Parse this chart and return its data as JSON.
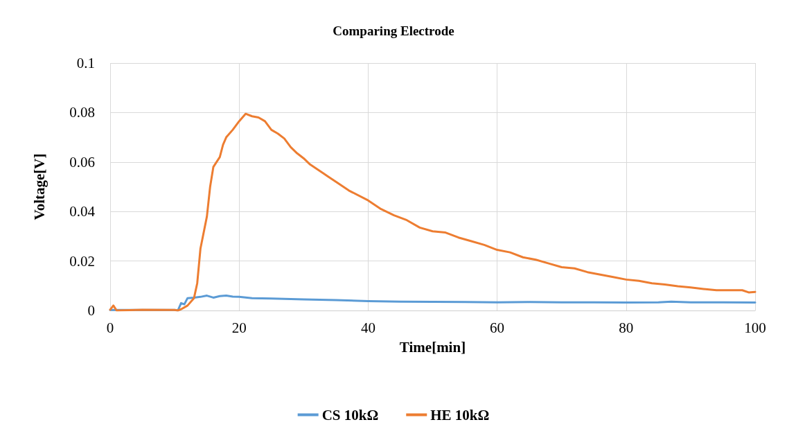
{
  "chart_data": {
    "type": "line",
    "title": "Comparing Electrode",
    "xlabel": "Time[min]",
    "ylabel": "Voltage[V]",
    "xlim": [
      0,
      100
    ],
    "xticks": [
      0,
      20,
      40,
      60,
      80,
      100
    ],
    "ylim": [
      0,
      0.1
    ],
    "yticks": [
      0,
      0.02,
      0.04,
      0.06,
      0.08,
      0.1
    ],
    "grid": true,
    "legend": "bottom",
    "marker": "none",
    "line_style": "solid",
    "series": [
      {
        "name": "CS 10kΩ",
        "color": "#5b9bd5",
        "x": [
          0,
          10,
          10.5,
          11,
          11.5,
          12,
          13,
          14,
          15,
          16,
          17,
          18,
          19,
          20,
          22,
          25,
          30,
          35,
          40,
          45,
          50,
          55,
          60,
          65,
          70,
          75,
          80,
          85,
          87,
          90,
          95,
          100
        ],
        "values": [
          0.0002,
          0.0002,
          0,
          0.003,
          0.0025,
          0.005,
          0.0052,
          0.0055,
          0.006,
          0.0052,
          0.0058,
          0.006,
          0.0056,
          0.0055,
          0.005,
          0.0048,
          0.0045,
          0.0042,
          0.0038,
          0.0036,
          0.0035,
          0.0034,
          0.0033,
          0.0034,
          0.0033,
          0.0033,
          0.0032,
          0.0033,
          0.0036,
          0.0033,
          0.0033,
          0.0032
        ]
      },
      {
        "name": "HE 10kΩ",
        "color": "#ed7d31",
        "x": [
          0,
          0.5,
          1,
          5,
          10,
          10.5,
          11,
          12,
          13,
          13.5,
          14,
          15,
          15.5,
          16,
          17,
          17.5,
          18,
          19,
          20,
          21,
          22,
          23,
          24,
          25,
          26,
          27,
          28,
          29,
          30,
          31,
          33,
          35,
          37,
          40,
          42,
          44,
          46,
          48,
          50,
          52,
          54,
          56,
          58,
          60,
          62,
          64,
          66,
          68,
          70,
          72,
          74,
          76,
          78,
          80,
          82,
          84,
          86,
          88,
          90,
          92,
          94,
          96,
          98,
          99,
          100
        ],
        "values": [
          0.0003,
          0.002,
          0,
          0.0003,
          0.0002,
          0,
          0.0005,
          0.002,
          0.005,
          0.011,
          0.025,
          0.038,
          0.05,
          0.058,
          0.062,
          0.067,
          0.07,
          0.073,
          0.0765,
          0.0795,
          0.0785,
          0.078,
          0.0765,
          0.073,
          0.0715,
          0.0695,
          0.066,
          0.0635,
          0.0615,
          0.059,
          0.0555,
          0.052,
          0.0485,
          0.0445,
          0.041,
          0.0385,
          0.0365,
          0.0335,
          0.032,
          0.0315,
          0.0295,
          0.028,
          0.0265,
          0.0245,
          0.0235,
          0.0215,
          0.0205,
          0.019,
          0.0175,
          0.017,
          0.0155,
          0.0145,
          0.0135,
          0.0125,
          0.012,
          0.011,
          0.0105,
          0.0098,
          0.0093,
          0.0087,
          0.0082,
          0.0082,
          0.0082,
          0.0073,
          0.0075
        ]
      }
    ]
  }
}
